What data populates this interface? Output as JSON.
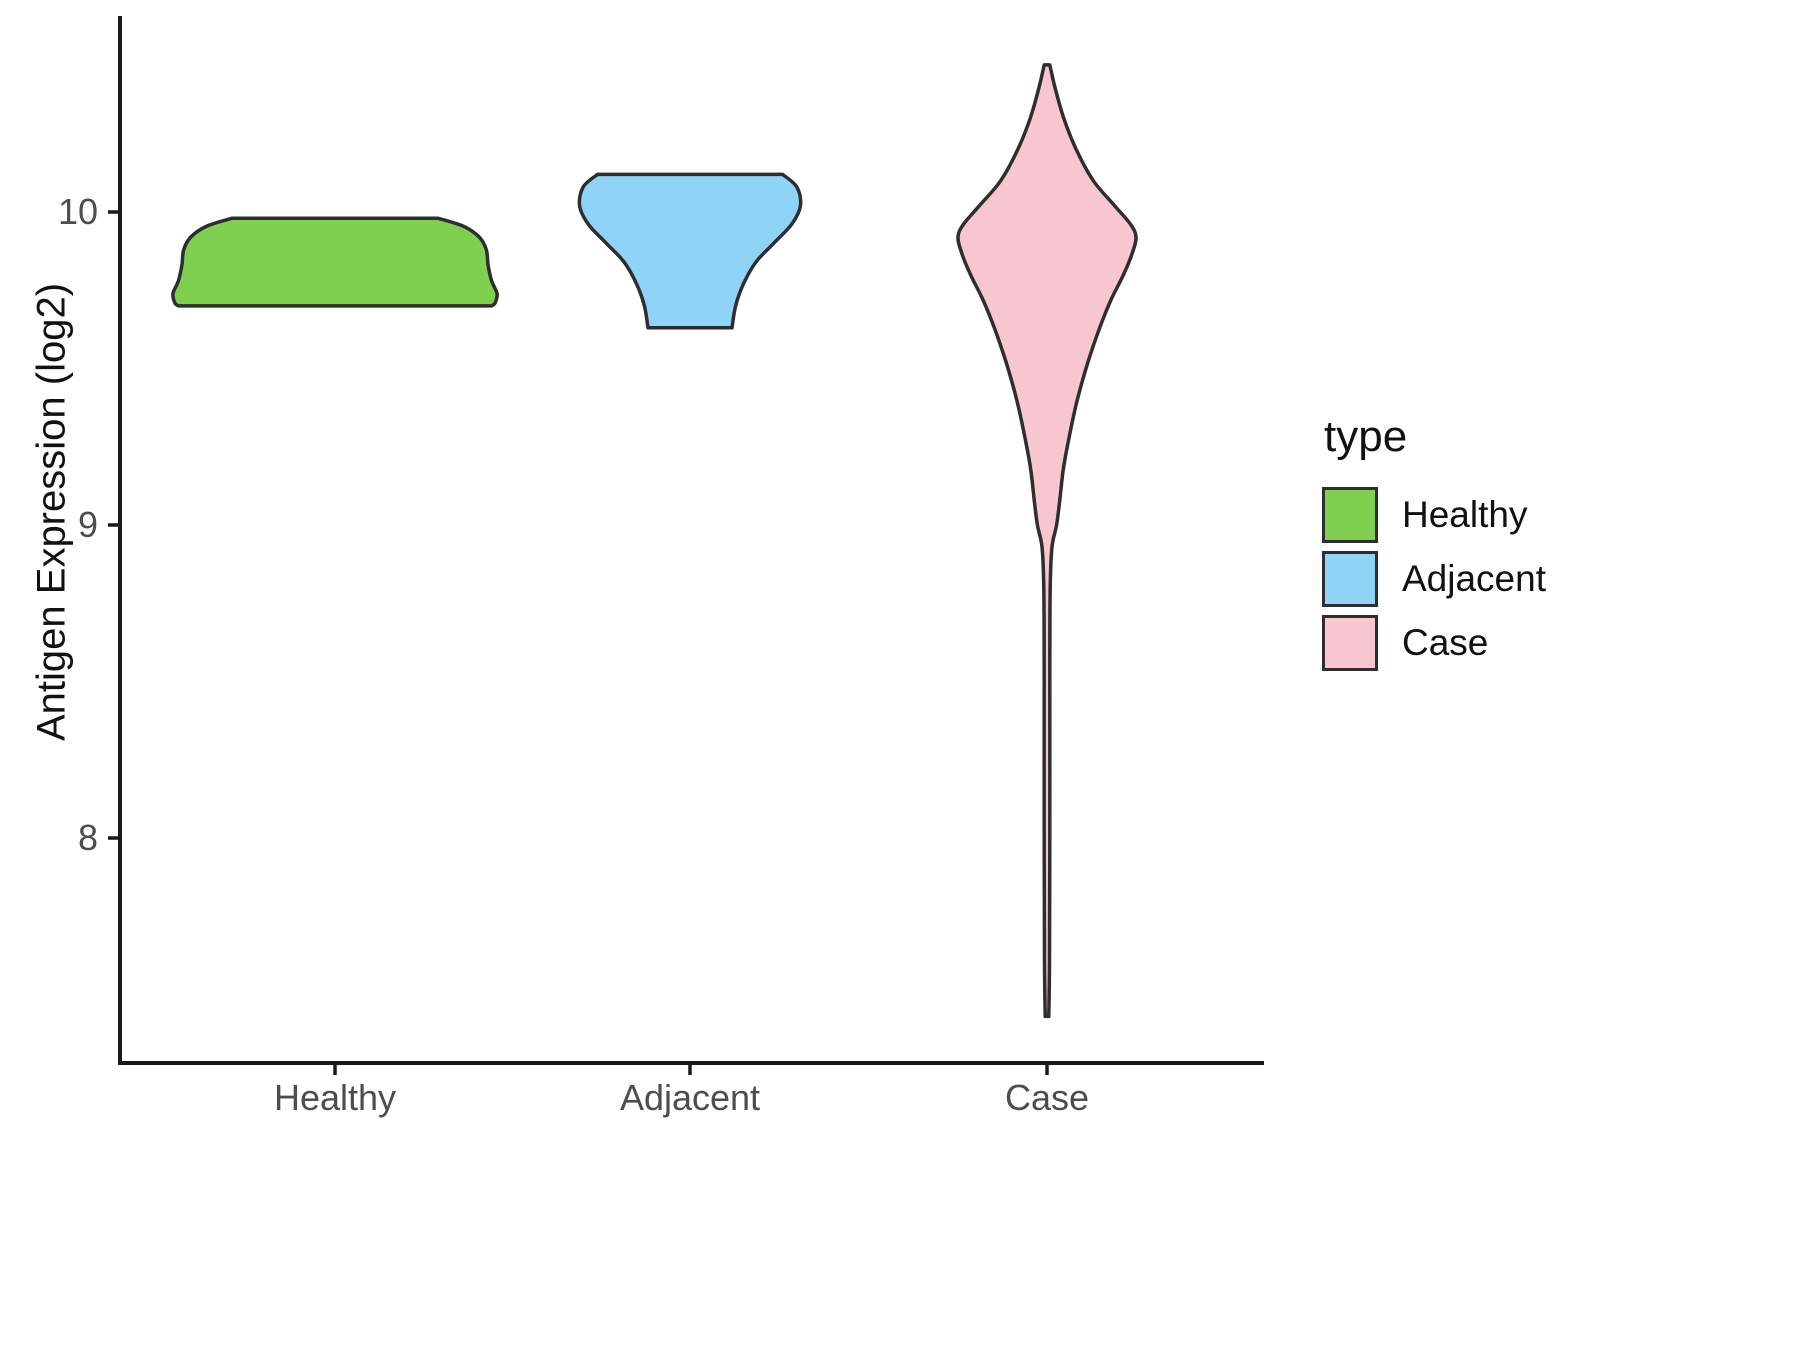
{
  "axis": {
    "y_label": "Antigen Expression (log2)",
    "y_ticks": [
      "10",
      "9",
      "8"
    ],
    "x_ticks": [
      "Healthy",
      "Adjacent",
      "Case"
    ]
  },
  "legend": {
    "title": "type",
    "entries": [
      {
        "label": "Healthy",
        "color": "#7FD04F"
      },
      {
        "label": "Adjacent",
        "color": "#8FD3F6"
      },
      {
        "label": "Case",
        "color": "#F7C6D1"
      }
    ]
  },
  "chart_data": {
    "type": "violin",
    "title": "",
    "xlabel": "",
    "ylabel": "Antigen Expression (log2)",
    "categories": [
      "Healthy",
      "Adjacent",
      "Case"
    ],
    "ylim": [
      7.3,
      10.6
    ],
    "y_tick_values": [
      10,
      9,
      8
    ],
    "grid": false,
    "legend_position": "right",
    "outline_color": "#2e2e2e",
    "axis_color": "#1a1a1a",
    "series": [
      {
        "name": "Healthy",
        "fill": "#7FD04F",
        "summary": {
          "min": 9.7,
          "max": 9.98,
          "widest_at": 9.74,
          "shape": "wide flat plateau"
        },
        "profile": [
          [
            9.98,
            0.29
          ],
          [
            9.955,
            0.36
          ],
          [
            9.92,
            0.405
          ],
          [
            9.88,
            0.425
          ],
          [
            9.83,
            0.43
          ],
          [
            9.78,
            0.44
          ],
          [
            9.74,
            0.455
          ],
          [
            9.71,
            0.45
          ],
          [
            9.7,
            0.44
          ]
        ]
      },
      {
        "name": "Adjacent",
        "fill": "#8FD3F6",
        "summary": {
          "min": 9.63,
          "max": 10.12,
          "widest_at": 10.02,
          "shape": "funnel, wide at top narrowing downward"
        },
        "profile": [
          [
            10.12,
            0.26
          ],
          [
            10.08,
            0.3
          ],
          [
            10.02,
            0.31
          ],
          [
            9.96,
            0.285
          ],
          [
            9.9,
            0.235
          ],
          [
            9.84,
            0.185
          ],
          [
            9.77,
            0.15
          ],
          [
            9.7,
            0.128
          ],
          [
            9.63,
            0.118
          ]
        ]
      },
      {
        "name": "Case",
        "fill": "#F7C6D1",
        "summary": {
          "min": 7.43,
          "max": 10.47,
          "widest_at": 9.92,
          "shape": "bulge near 9.9 with very long thin lower tail"
        },
        "profile": [
          [
            10.47,
            0.008
          ],
          [
            10.4,
            0.022
          ],
          [
            10.3,
            0.047
          ],
          [
            10.2,
            0.082
          ],
          [
            10.1,
            0.13
          ],
          [
            10.02,
            0.19
          ],
          [
            9.96,
            0.235
          ],
          [
            9.92,
            0.25
          ],
          [
            9.87,
            0.24
          ],
          [
            9.8,
            0.215
          ],
          [
            9.72,
            0.18
          ],
          [
            9.63,
            0.148
          ],
          [
            9.52,
            0.115
          ],
          [
            9.4,
            0.085
          ],
          [
            9.28,
            0.062
          ],
          [
            9.18,
            0.046
          ],
          [
            9.08,
            0.036
          ],
          [
            9.0,
            0.027
          ],
          [
            8.93,
            0.014
          ],
          [
            8.8,
            0.009
          ],
          [
            8.5,
            0.008
          ],
          [
            8.0,
            0.008
          ],
          [
            7.6,
            0.007
          ],
          [
            7.43,
            0.005
          ]
        ]
      }
    ]
  }
}
